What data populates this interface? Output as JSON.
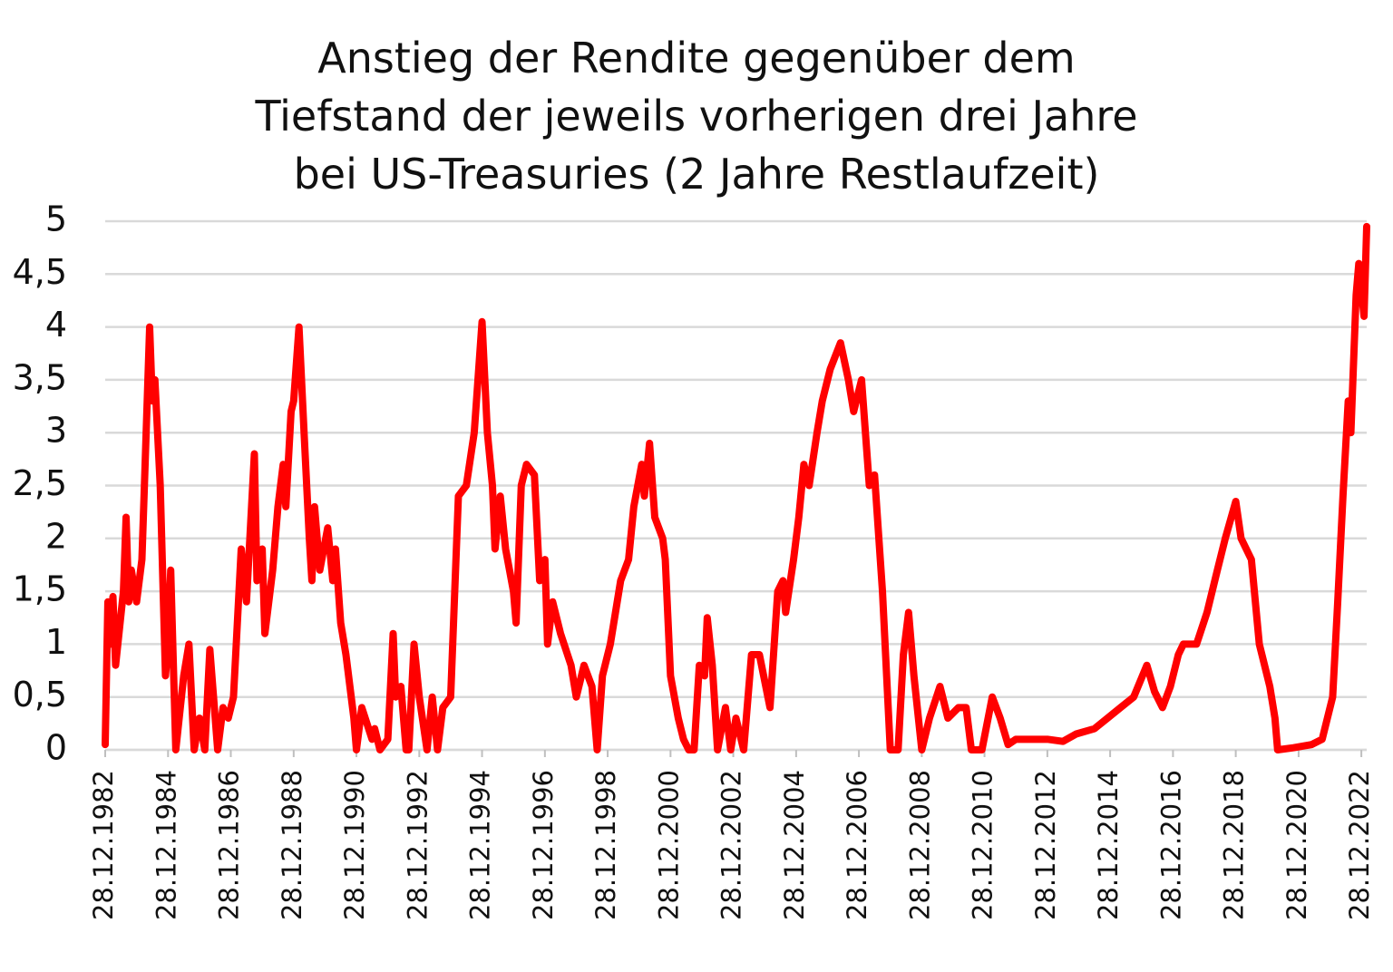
{
  "chart_data": {
    "type": "line",
    "title": [
      "Anstieg der Rendite gegenüber dem",
      "Tiefstand der jeweils vorherigen drei Jahre",
      "bei US-Treasuries (2 Jahre Restlaufzeit)"
    ],
    "color": "#ff0000",
    "grid": true,
    "ylim": [
      0,
      5
    ],
    "yticks": [
      0,
      {
        "value": 0.5,
        "label": "0,5"
      },
      1,
      {
        "value": 1.5,
        "label": "1,5"
      },
      2,
      {
        "value": 2.5,
        "label": "2,5"
      },
      3,
      {
        "value": 3.5,
        "label": "3,5"
      },
      4,
      {
        "value": 4.5,
        "label": "4,5"
      },
      5
    ],
    "xlim": [
      "28.12.1982",
      "28.02.2023"
    ],
    "xticks": [
      "28.12.1982",
      "28.12.1984",
      "28.12.1986",
      "28.12.1988",
      "28.12.1990",
      "28.12.1992",
      "28.12.1994",
      "28.12.1996",
      "28.12.1998",
      "28.12.2000",
      "28.12.2002",
      "28.12.2004",
      "28.12.2006",
      "28.12.2008",
      "28.12.2010",
      "28.12.2012",
      "28.12.2014",
      "28.12.2016",
      "28.12.2018",
      "28.12.2020",
      "28.12.2022"
    ],
    "x": [
      "28.12.1982",
      "28.01.1983",
      "28.02.1983",
      "28.03.1983",
      "28.04.1983",
      "28.07.1983",
      "28.08.1983",
      "28.09.1983",
      "28.10.1983",
      "28.12.1983",
      "28.02.1984",
      "28.03.1984",
      "28.05.1984",
      "28.06.1984",
      "28.07.1984",
      "28.09.1984",
      "28.11.1984",
      "28.12.1984",
      "28.01.1985",
      "28.02.1985",
      "28.03.1985",
      "28.06.1985",
      "28.08.1985",
      "28.10.1985",
      "28.12.1985",
      "28.02.1986",
      "28.04.1986",
      "28.07.1986",
      "28.09.1986",
      "28.11.1986",
      "28.01.1987",
      "28.04.1987",
      "28.06.1987",
      "28.09.1987",
      "28.10.1987",
      "28.12.1987",
      "28.01.1988",
      "28.04.1988",
      "28.06.1988",
      "28.08.1988",
      "28.09.1988",
      "28.11.1988",
      "28.12.1988",
      "28.02.1989",
      "28.04.1989",
      "28.06.1989",
      "28.07.1989",
      "28.08.1989",
      "28.10.1989",
      "28.01.1990",
      "28.03.1990",
      "28.04.1990",
      "28.06.1990",
      "28.08.1990",
      "28.11.1990",
      "28.12.1990",
      "28.02.1991",
      "28.06.1991",
      "28.07.1991",
      "28.09.1991",
      "28.12.1991",
      "28.02.1992",
      "28.03.1992",
      "28.05.1992",
      "28.07.1992",
      "28.08.1992",
      "28.10.1992",
      "28.12.1992",
      "28.03.1993",
      "28.05.1993",
      "28.07.1993",
      "28.09.1993",
      "28.12.1993",
      "28.03.1994",
      "28.06.1994",
      "28.09.1994",
      "28.12.1994",
      "28.02.1995",
      "28.04.1995",
      "28.05.1995",
      "28.07.1995",
      "28.09.1995",
      "28.12.1995",
      "28.01.1996",
      "28.03.1996",
      "28.05.1996",
      "28.08.1996",
      "28.10.1996",
      "28.12.1996",
      "28.01.1997",
      "28.03.1997",
      "28.06.1997",
      "28.10.1997",
      "28.12.1997",
      "28.03.1998",
      "28.06.1998",
      "28.08.1998",
      "28.10.1998",
      "28.01.1999",
      "28.05.1999",
      "28.08.1999",
      "28.10.1999",
      "28.01.2000",
      "28.02.2000",
      "28.04.2000",
      "28.06.2000",
      "28.09.2000",
      "28.10.2000",
      "28.12.2000",
      "28.03.2001",
      "28.05.2001",
      "28.07.2001",
      "28.09.2001",
      "28.11.2001",
      "28.01.2002",
      "28.02.2002",
      "28.04.2002",
      "28.06.2002",
      "28.09.2002",
      "28.11.2002",
      "28.01.2003",
      "28.04.2003",
      "28.07.2003",
      "28.10.2003",
      "28.02.2004",
      "28.05.2004",
      "28.07.2004",
      "28.08.2004",
      "28.11.2004",
      "28.01.2005",
      "28.03.2005",
      "28.05.2005",
      "28.08.2005",
      "28.10.2005",
      "28.01.2006",
      "28.05.2006",
      "28.08.2006",
      "28.10.2006",
      "28.01.2007",
      "28.04.2007",
      "28.06.2007",
      "28.09.2007",
      "28.12.2007",
      "28.03.2008",
      "28.05.2008",
      "28.07.2008",
      "28.09.2008",
      "28.12.2008",
      "28.03.2009",
      "28.07.2009",
      "28.10.2009",
      "28.02.2010",
      "28.05.2010",
      "28.07.2010",
      "28.11.2010",
      "28.03.2011",
      "28.06.2011",
      "28.09.2011",
      "28.12.2011",
      "28.05.2012",
      "28.12.2012",
      "28.06.2013",
      "28.11.2013",
      "28.06.2014",
      "28.11.2014",
      "28.04.2015",
      "28.09.2015",
      "28.02.2016",
      "28.05.2016",
      "28.08.2016",
      "28.11.2016",
      "28.02.2017",
      "28.04.2017",
      "28.09.2017",
      "28.01.2018",
      "28.05.2018",
      "28.08.2018",
      "28.12.2018",
      "28.02.2019",
      "28.06.2019",
      "28.09.2019",
      "28.01.2020",
      "28.03.2020",
      "28.04.2020",
      "28.10.2020",
      "28.05.2021",
      "28.09.2021",
      "28.01.2022",
      "28.03.2022",
      "28.05.2022",
      "28.07.2022",
      "28.08.2022",
      "28.10.2022",
      "28.11.2022",
      "28.01.2023",
      "28.02.2023"
    ],
    "values": [
      0.05,
      1.4,
      1.0,
      1.45,
      0.8,
      1.5,
      2.2,
      1.4,
      1.7,
      1.4,
      1.8,
      2.5,
      4.0,
      3.3,
      3.5,
      2.5,
      0.7,
      1.0,
      1.7,
      0.8,
      0,
      0.7,
      1.0,
      0,
      0.3,
      0,
      0.95,
      0,
      0.4,
      0.3,
      0.5,
      1.9,
      1.4,
      2.8,
      1.6,
      1.9,
      1.1,
      1.7,
      2.3,
      2.7,
      2.3,
      3.2,
      3.3,
      4.0,
      3.0,
      2.0,
      1.6,
      2.3,
      1.7,
      2.1,
      1.6,
      1.9,
      1.2,
      0.9,
      0.3,
      0,
      0.4,
      0.1,
      0.2,
      0,
      0.1,
      1.1,
      0.5,
      0.6,
      0,
      0,
      1.0,
      0.5,
      0,
      0.5,
      0,
      0.4,
      0.5,
      2.4,
      2.5,
      3.0,
      4.05,
      3.0,
      2.5,
      1.9,
      2.4,
      1.9,
      1.5,
      1.2,
      2.5,
      2.7,
      2.6,
      1.6,
      1.8,
      1.0,
      1.4,
      1.1,
      0.8,
      0.5,
      0.8,
      0.6,
      0,
      0.7,
      1.0,
      1.6,
      1.8,
      2.3,
      2.7,
      2.4,
      2.9,
      2.2,
      2.0,
      1.8,
      0.7,
      0.3,
      0.1,
      0,
      0,
      0.8,
      0.7,
      1.25,
      0.8,
      0,
      0.4,
      0,
      0.3,
      0,
      0.9,
      0.9,
      0.4,
      1.5,
      1.6,
      1.3,
      1.8,
      2.2,
      2.7,
      2.5,
      3.0,
      3.3,
      3.6,
      3.85,
      3.5,
      3.2,
      3.5,
      2.5,
      2.6,
      1.5,
      0,
      0,
      0.9,
      1.3,
      0.7,
      0,
      0.3,
      0.6,
      0.3,
      0.4,
      0.4,
      0,
      0,
      0.5,
      0.3,
      0.05,
      0.1,
      0.1,
      0.1,
      0.08,
      0.15,
      0.2,
      0.3,
      0.4,
      0.5,
      0.8,
      0.55,
      0.4,
      0.6,
      0.9,
      1.0,
      1.0,
      1.3,
      1.7,
      2.0,
      2.35,
      2.0,
      1.8,
      1.0,
      0.6,
      0.3,
      0,
      0.02,
      0.05,
      0.1,
      0.5,
      1.4,
      2.4,
      3.3,
      3.0,
      4.3,
      4.6,
      4.1,
      4.95
    ]
  }
}
